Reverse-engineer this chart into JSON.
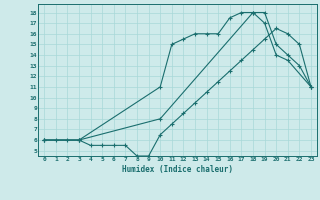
{
  "xlabel": "Humidex (Indice chaleur)",
  "background_color": "#ceeaea",
  "grid_color": "#a8d8d8",
  "line_color": "#1a6e6e",
  "xlim": [
    -0.5,
    23.5
  ],
  "ylim": [
    4.5,
    18.8
  ],
  "xticks": [
    0,
    1,
    2,
    3,
    4,
    5,
    6,
    7,
    8,
    9,
    10,
    11,
    12,
    13,
    14,
    15,
    16,
    17,
    18,
    19,
    20,
    21,
    22,
    23
  ],
  "yticks": [
    5,
    6,
    7,
    8,
    9,
    10,
    11,
    12,
    13,
    14,
    15,
    16,
    17,
    18
  ],
  "line1_x": [
    0,
    1,
    2,
    3,
    10,
    11,
    12,
    13,
    14,
    15,
    16,
    17,
    18,
    19,
    20,
    21,
    23
  ],
  "line1_y": [
    6,
    6,
    6,
    6,
    11,
    15,
    15.5,
    16,
    16,
    16,
    17.5,
    18,
    18,
    17,
    14,
    13.5,
    11
  ],
  "line2_x": [
    0,
    3,
    4,
    5,
    6,
    7,
    8,
    9,
    10,
    11,
    12,
    13,
    14,
    15,
    16,
    17,
    18,
    19,
    20,
    21,
    22,
    23
  ],
  "line2_y": [
    6,
    6,
    5.5,
    5.5,
    5.5,
    5.5,
    4.5,
    4.5,
    6.5,
    7.5,
    8.5,
    9.5,
    10.5,
    11.5,
    12.5,
    13.5,
    14.5,
    15.5,
    16.5,
    16,
    15,
    11
  ],
  "line3_x": [
    0,
    3,
    10,
    18,
    19,
    20,
    21,
    22,
    23
  ],
  "line3_y": [
    6,
    6,
    8,
    18,
    18,
    15,
    14,
    13,
    11
  ]
}
